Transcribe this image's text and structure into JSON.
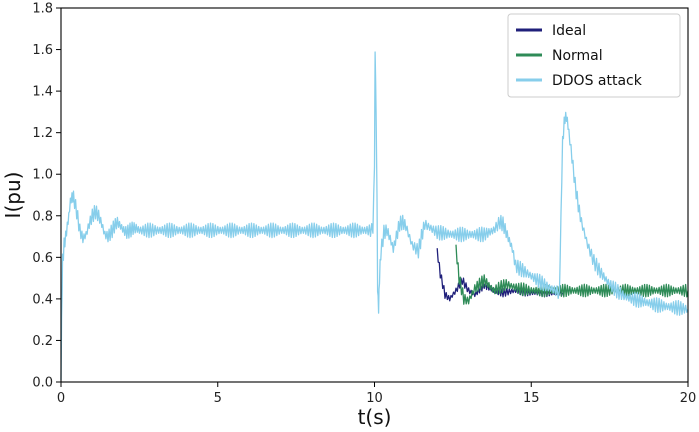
{
  "chart_data": {
    "type": "line",
    "title": "",
    "xlabel": "t(s)",
    "ylabel": "I(pu)",
    "xlim": [
      0,
      20
    ],
    "ylim": [
      0,
      1.8
    ],
    "xticks": [
      0,
      5,
      10,
      15,
      20
    ],
    "xtick_labels": [
      "0",
      "5",
      "10",
      "15",
      "20"
    ],
    "yticks": [
      0.0,
      0.2,
      0.4,
      0.6,
      0.8,
      1.0,
      1.2,
      1.4,
      1.6,
      1.8
    ],
    "ytick_labels": [
      "0.0",
      "0.2",
      "0.4",
      "0.6",
      "0.8",
      "1.0",
      "1.2",
      "1.4",
      "1.6",
      "1.8"
    ],
    "grid": false,
    "legend_position": "top-right",
    "series": [
      {
        "name": "Ideal",
        "color": "#1f1f7a",
        "x": [
          12.0,
          12.1,
          12.25,
          12.4,
          12.6,
          12.8,
          13.0,
          13.2,
          13.5,
          13.8,
          14.1,
          14.5,
          15.0,
          15.5,
          16.0
        ],
        "y": [
          0.63,
          0.52,
          0.42,
          0.4,
          0.44,
          0.49,
          0.44,
          0.42,
          0.47,
          0.44,
          0.43,
          0.44,
          0.43,
          0.43,
          0.43
        ],
        "band": 0.02
      },
      {
        "name": "Normal",
        "color": "#2e8b57",
        "x": [
          12.6,
          12.7,
          12.85,
          13.0,
          13.2,
          13.5,
          13.8,
          14.2,
          14.6,
          15.0,
          16.0,
          17.0,
          18.0,
          19.0,
          20.0
        ],
        "y": [
          0.64,
          0.5,
          0.4,
          0.39,
          0.45,
          0.49,
          0.44,
          0.47,
          0.45,
          0.44,
          0.44,
          0.44,
          0.44,
          0.44,
          0.44
        ],
        "band": 0.03
      },
      {
        "name": "DDOS attack",
        "color": "#87ceeb",
        "x": [
          0.0,
          0.02,
          0.05,
          0.1,
          0.15,
          0.2,
          0.25,
          0.3,
          0.35,
          0.4,
          0.5,
          0.6,
          0.7,
          0.8,
          0.9,
          1.0,
          1.1,
          1.2,
          1.3,
          1.4,
          1.5,
          1.6,
          1.7,
          1.8,
          1.9,
          2.0,
          2.1,
          2.2,
          2.3,
          2.4,
          2.5,
          3.0,
          4.0,
          5.0,
          6.0,
          7.0,
          8.0,
          9.0,
          9.95,
          10.0,
          10.02,
          10.05,
          10.08,
          10.1,
          10.13,
          10.16,
          10.2,
          10.3,
          10.4,
          10.5,
          10.6,
          10.7,
          10.8,
          10.9,
          11.0,
          11.2,
          11.4,
          11.5,
          11.6,
          11.8,
          12.0,
          12.5,
          13.0,
          13.5,
          13.8,
          14.0,
          14.1,
          14.2,
          14.3,
          14.4,
          14.5,
          14.8,
          15.0,
          15.5,
          15.9,
          15.95,
          16.0,
          16.05,
          16.1,
          16.15,
          16.2,
          16.3,
          16.4,
          16.5,
          16.6,
          16.8,
          17.0,
          17.2,
          17.5,
          17.8,
          18.0,
          18.5,
          19.0,
          19.5,
          20.0
        ],
        "y": [
          0.0,
          0.3,
          0.58,
          0.66,
          0.7,
          0.75,
          0.8,
          0.87,
          0.89,
          0.89,
          0.82,
          0.73,
          0.69,
          0.71,
          0.76,
          0.8,
          0.82,
          0.8,
          0.76,
          0.71,
          0.7,
          0.72,
          0.75,
          0.77,
          0.75,
          0.73,
          0.72,
          0.73,
          0.74,
          0.74,
          0.73,
          0.73,
          0.73,
          0.73,
          0.73,
          0.73,
          0.73,
          0.73,
          0.73,
          1.05,
          1.6,
          1.3,
          0.9,
          0.45,
          0.35,
          0.5,
          0.62,
          0.72,
          0.73,
          0.69,
          0.64,
          0.7,
          0.76,
          0.77,
          0.75,
          0.66,
          0.63,
          0.7,
          0.76,
          0.74,
          0.72,
          0.71,
          0.71,
          0.71,
          0.73,
          0.77,
          0.76,
          0.72,
          0.68,
          0.64,
          0.56,
          0.53,
          0.51,
          0.46,
          0.43,
          0.8,
          1.15,
          1.25,
          1.28,
          1.26,
          1.2,
          1.08,
          0.95,
          0.85,
          0.77,
          0.66,
          0.58,
          0.53,
          0.47,
          0.43,
          0.41,
          0.39,
          0.37,
          0.36,
          0.35
        ],
        "band": 0.035
      }
    ]
  }
}
